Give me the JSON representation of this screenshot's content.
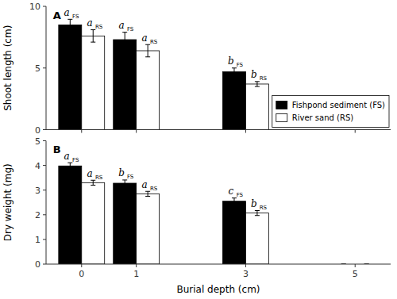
{
  "chart_data": [
    {
      "type": "bar",
      "title": "A",
      "y_label": "Shoot length (cm)",
      "x": [
        0,
        1,
        3,
        5
      ],
      "xlim": [
        -0.65,
        5.65
      ],
      "xticks": [
        0,
        1,
        3,
        5
      ],
      "ylim": [
        0,
        10
      ],
      "yticks": [
        0,
        5,
        10
      ],
      "tick_labels": "y",
      "grid": false,
      "legend": "lower right",
      "series": [
        {
          "name": "Fishpond sediment (FS)",
          "color": "#000000",
          "values": [
            8.5,
            7.3,
            4.7,
            0
          ],
          "errors": [
            0.45,
            0.6,
            0.3,
            0
          ],
          "letters": [
            "a",
            "a",
            "b",
            null
          ],
          "letter_subs": [
            "FS",
            "FS",
            "FS",
            null
          ]
        },
        {
          "name": "River sand (RS)",
          "color": "#ffffff",
          "values": [
            7.6,
            6.4,
            3.7,
            0
          ],
          "errors": [
            0.5,
            0.5,
            0.2,
            0
          ],
          "letters": [
            "a",
            "a",
            "b",
            null
          ],
          "letter_subs": [
            "RS",
            "RS",
            "RS",
            null
          ]
        }
      ]
    },
    {
      "type": "bar",
      "title": "B",
      "y_label": "Dry weight (mg)",
      "x_label": "Burial depth (cm)",
      "x": [
        0,
        1,
        3,
        5
      ],
      "xlim": [
        -0.65,
        5.65
      ],
      "xticks": [
        0,
        1,
        3,
        5
      ],
      "ylim": [
        0,
        5
      ],
      "yticks": [
        0,
        1,
        2,
        3,
        4,
        5
      ],
      "grid": false,
      "series": [
        {
          "color": "#000000",
          "values": [
            3.98,
            3.28,
            2.55,
            0
          ],
          "errors": [
            0.13,
            0.13,
            0.13,
            0
          ],
          "letters": [
            "a",
            "b",
            "c",
            null
          ],
          "letter_subs": [
            "FS",
            "FS",
            "FS",
            null
          ]
        },
        {
          "color": "#ffffff",
          "values": [
            3.3,
            2.85,
            2.07,
            0
          ],
          "errors": [
            0.1,
            0.1,
            0.1,
            0
          ],
          "letters": [
            "a",
            "a",
            "b",
            null
          ],
          "letter_subs": [
            "RS",
            "RS",
            "RS",
            null
          ]
        }
      ]
    }
  ]
}
